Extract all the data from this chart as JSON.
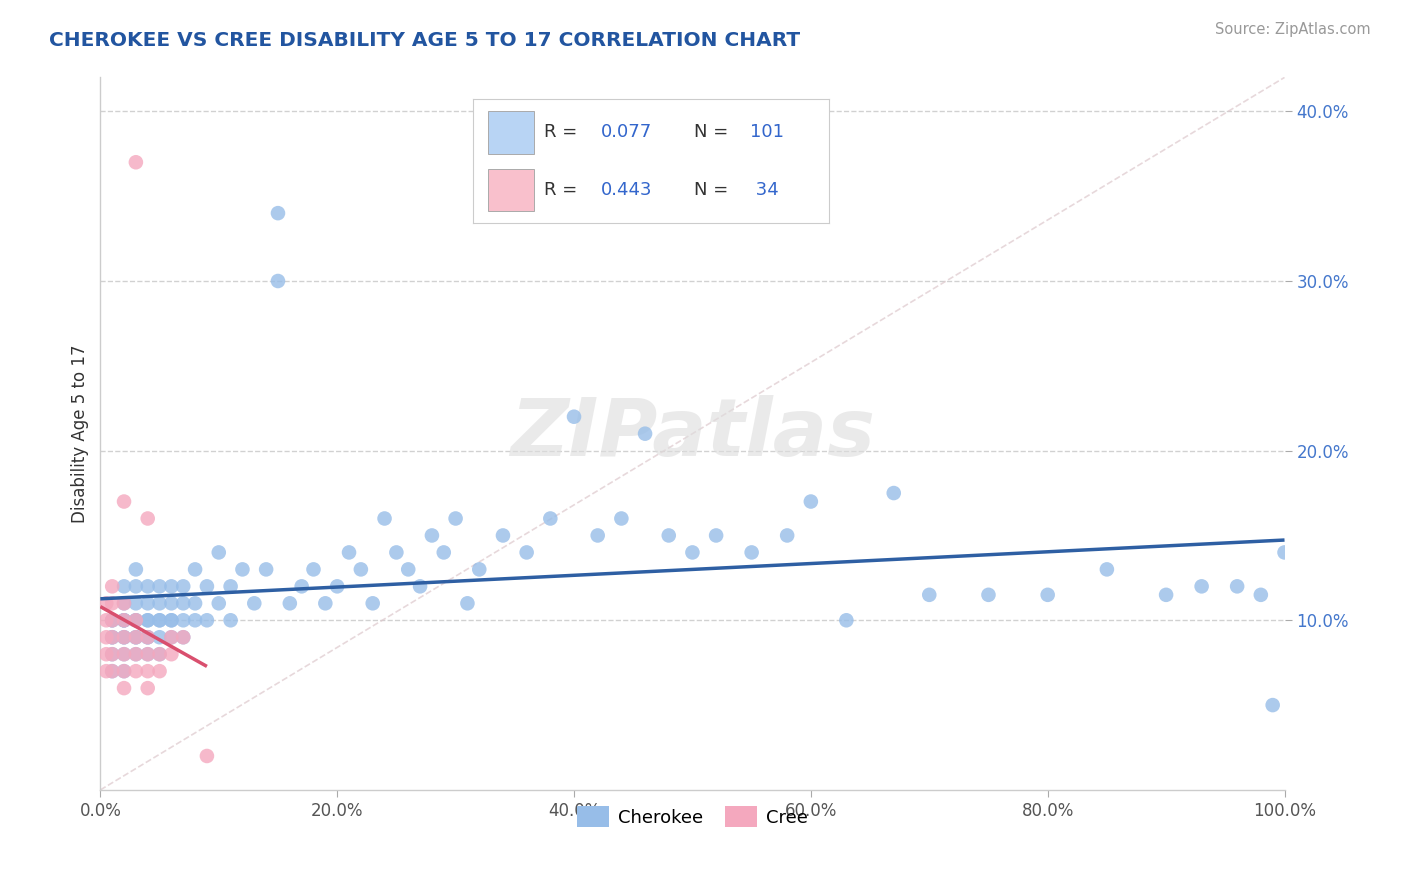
{
  "title": "CHEROKEE VS CREE DISABILITY AGE 5 TO 17 CORRELATION CHART",
  "source": "Source: ZipAtlas.com",
  "ylabel": "Disability Age 5 to 17",
  "xlim": [
    0.0,
    1.0
  ],
  "ylim": [
    0.0,
    0.42
  ],
  "xtick_vals": [
    0.0,
    0.2,
    0.4,
    0.6,
    0.8,
    1.0
  ],
  "xtick_labels": [
    "0.0%",
    "20.0%",
    "40.0%",
    "60.0%",
    "80.0%",
    "100.0%"
  ],
  "ytick_vals": [
    0.1,
    0.2,
    0.3,
    0.4
  ],
  "ytick_labels": [
    "10.0%",
    "20.0%",
    "30.0%",
    "40.0%"
  ],
  "cherokee_color": "#97bde8",
  "cree_color": "#f4a8be",
  "cherokee_line_color": "#2e5fa3",
  "cree_line_color": "#d94f6e",
  "legend_box_cherokee": "#b8d4f4",
  "legend_box_cree": "#f9c0cc",
  "background_color": "#ffffff",
  "grid_color": "#cccccc",
  "title_color": "#2255a0",
  "watermark": "ZIPatlas",
  "R_cherokee": 0.077,
  "N_cherokee": 101,
  "R_cree": 0.443,
  "N_cree": 34,
  "cherokee_x": [
    0.01,
    0.01,
    0.01,
    0.01,
    0.01,
    0.01,
    0.02,
    0.02,
    0.02,
    0.02,
    0.02,
    0.02,
    0.02,
    0.02,
    0.02,
    0.03,
    0.03,
    0.03,
    0.03,
    0.03,
    0.03,
    0.03,
    0.03,
    0.04,
    0.04,
    0.04,
    0.04,
    0.04,
    0.04,
    0.04,
    0.05,
    0.05,
    0.05,
    0.05,
    0.05,
    0.05,
    0.06,
    0.06,
    0.06,
    0.06,
    0.06,
    0.07,
    0.07,
    0.07,
    0.07,
    0.08,
    0.08,
    0.08,
    0.09,
    0.09,
    0.1,
    0.1,
    0.11,
    0.11,
    0.12,
    0.13,
    0.14,
    0.15,
    0.16,
    0.17,
    0.18,
    0.19,
    0.2,
    0.21,
    0.22,
    0.23,
    0.24,
    0.25,
    0.26,
    0.27,
    0.28,
    0.29,
    0.3,
    0.31,
    0.32,
    0.34,
    0.36,
    0.38,
    0.4,
    0.42,
    0.44,
    0.46,
    0.48,
    0.5,
    0.52,
    0.55,
    0.58,
    0.6,
    0.63,
    0.67,
    0.7,
    0.75,
    0.8,
    0.85,
    0.9,
    0.93,
    0.96,
    0.98,
    0.99,
    1.0,
    0.15
  ],
  "cherokee_y": [
    0.09,
    0.1,
    0.1,
    0.08,
    0.09,
    0.07,
    0.09,
    0.1,
    0.1,
    0.11,
    0.12,
    0.08,
    0.07,
    0.1,
    0.09,
    0.08,
    0.09,
    0.1,
    0.1,
    0.11,
    0.12,
    0.13,
    0.09,
    0.08,
    0.09,
    0.1,
    0.11,
    0.12,
    0.09,
    0.1,
    0.08,
    0.09,
    0.1,
    0.11,
    0.12,
    0.1,
    0.09,
    0.1,
    0.11,
    0.12,
    0.1,
    0.09,
    0.1,
    0.11,
    0.12,
    0.1,
    0.13,
    0.11,
    0.1,
    0.12,
    0.11,
    0.14,
    0.12,
    0.1,
    0.13,
    0.11,
    0.13,
    0.3,
    0.11,
    0.12,
    0.13,
    0.11,
    0.12,
    0.14,
    0.13,
    0.11,
    0.16,
    0.14,
    0.13,
    0.12,
    0.15,
    0.14,
    0.16,
    0.11,
    0.13,
    0.15,
    0.14,
    0.16,
    0.22,
    0.15,
    0.16,
    0.21,
    0.15,
    0.14,
    0.15,
    0.14,
    0.15,
    0.17,
    0.1,
    0.175,
    0.115,
    0.115,
    0.115,
    0.13,
    0.115,
    0.12,
    0.12,
    0.115,
    0.05,
    0.14,
    0.34
  ],
  "cree_x": [
    0.005,
    0.005,
    0.005,
    0.005,
    0.005,
    0.01,
    0.01,
    0.01,
    0.01,
    0.01,
    0.01,
    0.02,
    0.02,
    0.02,
    0.02,
    0.02,
    0.02,
    0.02,
    0.03,
    0.03,
    0.03,
    0.03,
    0.03,
    0.04,
    0.04,
    0.04,
    0.04,
    0.04,
    0.05,
    0.05,
    0.06,
    0.06,
    0.07,
    0.09
  ],
  "cree_y": [
    0.07,
    0.08,
    0.09,
    0.1,
    0.11,
    0.07,
    0.08,
    0.09,
    0.1,
    0.11,
    0.12,
    0.06,
    0.07,
    0.08,
    0.09,
    0.1,
    0.11,
    0.17,
    0.07,
    0.08,
    0.09,
    0.1,
    0.37,
    0.06,
    0.07,
    0.08,
    0.09,
    0.16,
    0.07,
    0.08,
    0.08,
    0.09,
    0.09,
    0.02
  ]
}
